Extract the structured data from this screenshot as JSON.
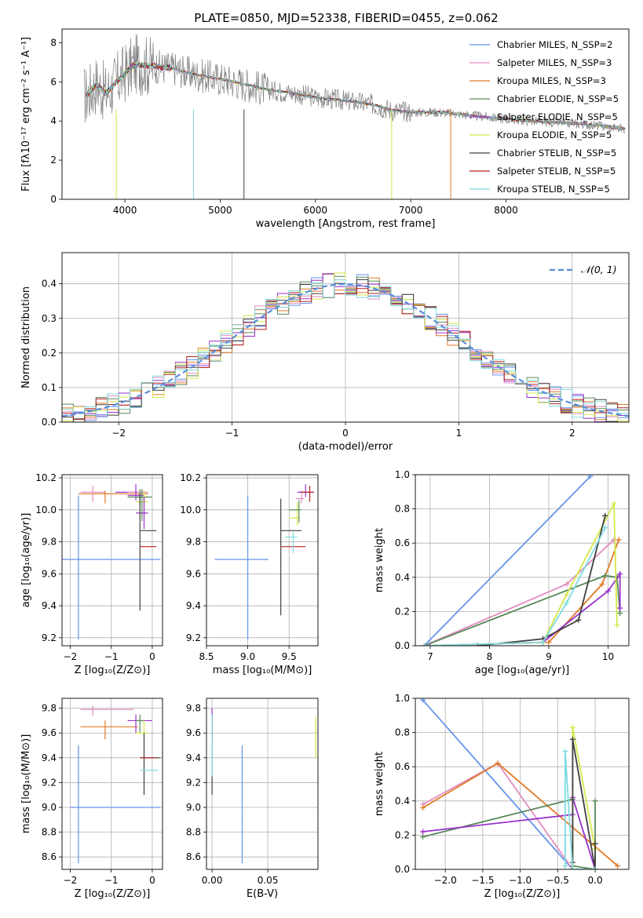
{
  "figure_title": "PLATE=0850, MJD=52338, FIBERID=0455, z=0.062",
  "chart_data": [
    {
      "id": "spectrum",
      "type": "line",
      "title": "PLATE=0850, MJD=52338, FIBERID=0455, z=0.062",
      "xlabel": "wavelength [Angstrom, rest frame]",
      "ylabel": "Flux [fλ10⁻¹⁷ erg cm⁻² s⁻¹ A⁻¹]",
      "xlim": [
        3340,
        9290
      ],
      "ylim": [
        0,
        8.7
      ],
      "xticks": [
        4000,
        5000,
        6000,
        7000,
        8000
      ],
      "yticks": [
        0,
        2,
        4,
        6,
        8
      ],
      "grid": false,
      "legend_position": "upper right",
      "observed_data_color": "#808080",
      "series": [
        {
          "name": "Chabrier MILES, N_SSP=2",
          "color": "#6495ed"
        },
        {
          "name": "Salpeter MILES, N_SSP=3",
          "color": "#e28ec0"
        },
        {
          "name": "Kroupa MILES, N_SSP=3",
          "color": "#e07a28"
        },
        {
          "name": "Chabrier ELODIE, N_SSP=5",
          "color": "#5a8a5a"
        },
        {
          "name": "Salpeter ELODIE, N_SSP=5",
          "color": "#9932cc"
        },
        {
          "name": "Kroupa ELODIE, N_SSP=5",
          "color": "#d4e84a"
        },
        {
          "name": "Chabrier STELIB, N_SSP=5",
          "color": "#404040"
        },
        {
          "name": "Salpeter STELIB, N_SSP=5",
          "color": "#b22222"
        },
        {
          "name": "Kroupa STELIB, N_SSP=5",
          "color": "#7fdbe0"
        }
      ],
      "continuum": {
        "x": [
          3600,
          3700,
          3800,
          3950,
          4100,
          4300,
          4500,
          4700,
          5000,
          5200,
          5500,
          5800,
          6000,
          6300,
          6600,
          6800,
          7000,
          7300,
          7600,
          8000,
          8400,
          8800,
          9250
        ],
        "y": [
          5.3,
          5.9,
          5.4,
          6.2,
          6.9,
          6.8,
          6.7,
          6.4,
          6.15,
          5.95,
          5.6,
          5.4,
          5.2,
          5.05,
          4.85,
          4.55,
          4.45,
          4.45,
          4.3,
          4.1,
          3.95,
          3.85,
          3.6
        ]
      }
    },
    {
      "id": "residuals",
      "type": "histogram",
      "xlabel": "(data-model)/error",
      "ylabel": "Normed distribution",
      "xlim": [
        -2.5,
        2.5
      ],
      "ylim": [
        0,
        0.49
      ],
      "xticks": [
        -2,
        -1,
        0,
        1,
        2
      ],
      "yticks": [
        0.0,
        0.1,
        0.2,
        0.3,
        0.4
      ],
      "grid": true,
      "legend_position": "upper right",
      "reference_curve": {
        "name": "𝒩(0, 1)",
        "color": "#5b8dd9",
        "style": "dashed",
        "mean": 0,
        "sigma": 1
      }
    },
    {
      "id": "age_vs_Z",
      "type": "errorbar",
      "xlabel": "Z [log₁₀(Z/Z⊙)]",
      "ylabel": "age  [log₁₀(age/yr)]",
      "xlim": [
        -2.2,
        0.25
      ],
      "ylim": [
        9.15,
        10.22
      ],
      "xticks": [
        -2,
        -1,
        0
      ],
      "yticks": [
        9.2,
        9.4,
        9.6,
        9.8,
        10.0,
        10.2
      ],
      "grid": true,
      "points": [
        {
          "x": -1.8,
          "y": 9.69,
          "xerr": [
            0.6,
            2.0
          ],
          "yerr": [
            0.5,
            0.4
          ],
          "color": "#6495ed"
        },
        {
          "x": -1.8,
          "y": 10.1,
          "xerr": [
            0.0,
            1.7
          ],
          "yerr": [
            0.0,
            0.0
          ],
          "color": "#e07a28"
        },
        {
          "x": -1.45,
          "y": 10.11,
          "xerr": [
            0.3,
            0.3
          ],
          "yerr": [
            0.06,
            0.04
          ],
          "color": "#e28ec0"
        },
        {
          "x": -1.15,
          "y": 10.1,
          "xerr": [
            0.2,
            0.2
          ],
          "yerr": [
            0.06,
            0.02
          ],
          "color": "#e07a28"
        },
        {
          "x": -0.7,
          "y": 10.11,
          "xerr": [
            0.2,
            0.5
          ],
          "yerr": [
            0.0,
            0.0
          ],
          "color": "#9932cc"
        },
        {
          "x": -0.6,
          "y": 10.11,
          "xerr": [
            0.0,
            0.5
          ],
          "yerr": [
            0.0,
            0.0
          ],
          "color": "#e28ec0"
        },
        {
          "x": -0.4,
          "y": 10.09,
          "xerr": [
            0.2,
            0.2
          ],
          "yerr": [
            0.03,
            0.07
          ],
          "color": "#9932cc"
        },
        {
          "x": -0.3,
          "y": 10.08,
          "xerr": [
            0.3,
            0.3
          ],
          "yerr": [
            0.05,
            0.05
          ],
          "color": "#5a8a5a"
        },
        {
          "x": -0.2,
          "y": 10.05,
          "xerr": [
            0.2,
            0.1
          ],
          "yerr": [
            0.03,
            0.07
          ],
          "color": "#d4e84a"
        },
        {
          "x": -0.25,
          "y": 9.98,
          "xerr": [
            0.1,
            0.1
          ],
          "yerr": [
            0.05,
            0.15
          ],
          "color": "#5a8a5a"
        },
        {
          "x": -0.2,
          "y": 9.98,
          "xerr": [
            0.2,
            0.1
          ],
          "yerr": [
            0.1,
            0.1
          ],
          "color": "#9932cc"
        },
        {
          "x": -0.3,
          "y": 9.87,
          "xerr": [
            0.0,
            0.4
          ],
          "yerr": [
            0.5,
            0.23
          ],
          "color": "#404040"
        },
        {
          "x": -0.3,
          "y": 9.77,
          "xerr": [
            0.0,
            0.4
          ],
          "yerr": [
            0.0,
            0.0
          ],
          "color": "#b22222"
        }
      ]
    },
    {
      "id": "age_vs_mass",
      "type": "errorbar",
      "xlabel": "mass [log₁₀(M/M⊙)]",
      "ylabel": "",
      "xlim": [
        8.5,
        9.85
      ],
      "ylim": [
        9.15,
        10.22
      ],
      "xticks": [
        8.5,
        9.0,
        9.5
      ],
      "yticks": [
        9.2,
        9.4,
        9.6,
        9.8,
        10.0,
        10.2
      ],
      "grid": true,
      "points": [
        {
          "x": 9.0,
          "y": 9.69,
          "xerr": [
            0.4,
            0.25
          ],
          "yerr": [
            0.5,
            0.4
          ],
          "color": "#6495ed"
        },
        {
          "x": 9.4,
          "y": 9.87,
          "xerr": [
            0.0,
            0.25
          ],
          "yerr": [
            0.53,
            0.2
          ],
          "color": "#404040"
        },
        {
          "x": 9.55,
          "y": 9.77,
          "xerr": [
            0.15,
            0.15
          ],
          "yerr": [
            0.0,
            0.0
          ],
          "color": "#b22222"
        },
        {
          "x": 9.55,
          "y": 9.83,
          "xerr": [
            0.1,
            0.05
          ],
          "yerr": [
            0.1,
            0.03
          ],
          "color": "#7fdbe0"
        },
        {
          "x": 9.6,
          "y": 9.95,
          "xerr": [
            0.1,
            0.03
          ],
          "yerr": [
            0.05,
            0.1
          ],
          "color": "#d4e84a"
        },
        {
          "x": 9.62,
          "y": 10.0,
          "xerr": [
            0.12,
            0.03
          ],
          "yerr": [
            0.08,
            0.06
          ],
          "color": "#5a8a5a"
        },
        {
          "x": 9.65,
          "y": 10.07,
          "xerr": [
            0.07,
            0.03
          ],
          "yerr": [
            0.03,
            0.05
          ],
          "color": "#e28ec0"
        },
        {
          "x": 9.7,
          "y": 10.11,
          "xerr": [
            0.1,
            0.1
          ],
          "yerr": [
            0.03,
            0.05
          ],
          "color": "#9932cc"
        },
        {
          "x": 9.75,
          "y": 10.11,
          "xerr": [
            0.1,
            0.05
          ],
          "yerr": [
            0.06,
            0.04
          ],
          "color": "#b22222"
        }
      ]
    },
    {
      "id": "weight_vs_age",
      "type": "line",
      "xlabel": "age  [log₁₀(age/yr)]",
      "ylabel": "mass weight",
      "xlim": [
        6.75,
        10.35
      ],
      "ylim": [
        0,
        1.0
      ],
      "xticks": [
        7,
        8,
        9,
        10
      ],
      "yticks": [
        0.0,
        0.2,
        0.4,
        0.6,
        0.8,
        1.0
      ],
      "grid": true,
      "series": [
        {
          "color": "#6495ed",
          "x": [
            6.9,
            9.7
          ],
          "y": [
            0.0,
            0.99
          ]
        },
        {
          "color": "#e28ec0",
          "x": [
            6.9,
            9.3,
            10.1,
            10.1
          ],
          "y": [
            0.0,
            0.36,
            0.62,
            0.62
          ]
        },
        {
          "color": "#e07a28",
          "x": [
            6.9,
            9.0,
            9.9,
            10.18
          ],
          "y": [
            0.0,
            0.02,
            0.36,
            0.62
          ]
        },
        {
          "color": "#5a8a5a",
          "x": [
            6.9,
            9.95,
            10.15,
            10.2
          ],
          "y": [
            0.0,
            0.41,
            0.4,
            0.19
          ]
        },
        {
          "color": "#9932cc",
          "x": [
            7.0,
            8.9,
            10.0,
            10.2,
            10.2
          ],
          "y": [
            0.0,
            0.02,
            0.32,
            0.42,
            0.22
          ]
        },
        {
          "color": "#d4e84a",
          "x": [
            6.9,
            8.9,
            9.3,
            10.1,
            10.15
          ],
          "y": [
            0.0,
            0.02,
            0.3,
            0.83,
            0.12
          ]
        },
        {
          "color": "#404040",
          "x": [
            7.8,
            8.9,
            9.5,
            9.95,
            9.95
          ],
          "y": [
            0.0,
            0.04,
            0.15,
            0.76,
            0.76
          ]
        },
        {
          "color": "#7fdbe0",
          "x": [
            6.9,
            8.9,
            9.3,
            9.95
          ],
          "y": [
            0.0,
            0.02,
            0.25,
            0.69
          ]
        }
      ]
    },
    {
      "id": "mass_vs_Z",
      "type": "errorbar",
      "xlabel": "Z [log₁₀(Z/Z⊙)]",
      "ylabel": "mass [log₁₀(M/M⊙)]",
      "xlim": [
        -2.2,
        0.25
      ],
      "ylim": [
        8.5,
        9.88
      ],
      "xticks": [
        -2,
        -1,
        0
      ],
      "yticks": [
        8.6,
        8.8,
        9.0,
        9.2,
        9.4,
        9.6,
        9.8
      ],
      "grid": true,
      "points": [
        {
          "x": -1.8,
          "y": 9.0,
          "xerr": [
            0.2,
            2.0
          ],
          "yerr": [
            0.45,
            0.5
          ],
          "color": "#6495ed"
        },
        {
          "x": -1.45,
          "y": 9.79,
          "xerr": [
            0.3,
            1.0
          ],
          "yerr": [
            0.05,
            0.03
          ],
          "color": "#e28ec0"
        },
        {
          "x": -1.15,
          "y": 9.65,
          "xerr": [
            0.6,
            0.8
          ],
          "yerr": [
            0.1,
            0.05
          ],
          "color": "#e07a28"
        },
        {
          "x": -0.4,
          "y": 9.7,
          "xerr": [
            0.2,
            0.4
          ],
          "yerr": [
            0.1,
            0.05
          ],
          "color": "#9932cc"
        },
        {
          "x": -0.3,
          "y": 9.7,
          "xerr": [
            0.1,
            0.1
          ],
          "yerr": [
            0.1,
            0.05
          ],
          "color": "#5a8a5a"
        },
        {
          "x": -0.2,
          "y": 9.6,
          "xerr": [
            0.2,
            0.1
          ],
          "yerr": [
            0.05,
            0.1
          ],
          "color": "#d4e84a"
        },
        {
          "x": -0.2,
          "y": 9.4,
          "xerr": [
            0.1,
            0.4
          ],
          "yerr": [
            0.3,
            0.2
          ],
          "color": "#404040"
        },
        {
          "x": -0.3,
          "y": 9.4,
          "xerr": [
            0.0,
            0.4
          ],
          "yerr": [
            0.0,
            0.0
          ],
          "color": "#b22222"
        },
        {
          "x": -0.25,
          "y": 9.3,
          "xerr": [
            0.05,
            0.4
          ],
          "yerr": [
            0.0,
            0.0
          ],
          "color": "#7fdbe0"
        }
      ]
    },
    {
      "id": "mass_vs_ebv",
      "type": "errorbar",
      "xlabel": "E(B-V)",
      "ylabel": "",
      "xlim": [
        -0.005,
        0.095
      ],
      "ylim": [
        8.5,
        9.88
      ],
      "xticks": [
        0.0,
        0.05
      ],
      "yticks": [
        8.6,
        8.8,
        9.0,
        9.2,
        9.4,
        9.6,
        9.8
      ],
      "grid": true,
      "points": [
        {
          "x": 0.027,
          "y": 9.0,
          "xerr": [
            0,
            0
          ],
          "yerr": [
            0.45,
            0.5
          ],
          "color": "#6495ed"
        },
        {
          "x": 0.0,
          "y": 9.4,
          "xerr": [
            0,
            0
          ],
          "yerr": [
            0.3,
            0.2
          ],
          "color": "#404040"
        },
        {
          "x": 0.0,
          "y": 9.65,
          "xerr": [
            0,
            0
          ],
          "yerr": [
            0.1,
            0.1
          ],
          "color": "#b22222"
        },
        {
          "x": 0.0,
          "y": 9.7,
          "xerr": [
            0,
            0
          ],
          "yerr": [
            0.1,
            0.1
          ],
          "color": "#9932cc"
        },
        {
          "x": 0.0,
          "y": 9.55,
          "xerr": [
            0,
            0
          ],
          "yerr": [
            0.3,
            0.2
          ],
          "color": "#7fdbe0"
        },
        {
          "x": 0.093,
          "y": 9.55,
          "xerr": [
            0,
            0
          ],
          "yerr": [
            0.15,
            0.18
          ],
          "color": "#d4e84a"
        }
      ]
    },
    {
      "id": "weight_vs_Z",
      "type": "line",
      "xlabel": "Z [log₁₀(Z/Z⊙)]",
      "ylabel": "mass weight",
      "xlim": [
        -2.4,
        0.45
      ],
      "ylim": [
        0,
        1.0
      ],
      "xticks": [
        -2.0,
        -1.5,
        -1.0,
        -0.5,
        0.0
      ],
      "yticks": [
        0.0,
        0.2,
        0.4,
        0.6,
        0.8,
        1.0
      ],
      "grid": true,
      "series": [
        {
          "color": "#6495ed",
          "x": [
            -2.3,
            -0.3,
            0.0
          ],
          "y": [
            0.99,
            0.0,
            0.0
          ]
        },
        {
          "color": "#e28ec0",
          "x": [
            -2.3,
            -1.3,
            -0.3
          ],
          "y": [
            0.38,
            0.62,
            0.0
          ]
        },
        {
          "color": "#e07a28",
          "x": [
            -2.3,
            -1.3,
            0.3
          ],
          "y": [
            0.36,
            0.62,
            0.02
          ]
        },
        {
          "color": "#5a8a5a",
          "x": [
            -2.3,
            -0.3,
            -0.3,
            0.0,
            0.0
          ],
          "y": [
            0.19,
            0.41,
            0.02,
            0.0,
            0.4
          ]
        },
        {
          "color": "#9932cc",
          "x": [
            -2.3,
            -0.3,
            -0.3,
            0.0
          ],
          "y": [
            0.22,
            0.32,
            0.42,
            0.0
          ]
        },
        {
          "color": "#d4e84a",
          "x": [
            -0.3,
            -0.3,
            0.0,
            0.0
          ],
          "y": [
            0.0,
            0.83,
            0.12,
            0.0
          ]
        },
        {
          "color": "#404040",
          "x": [
            -0.3,
            -0.3,
            0.0,
            0.0
          ],
          "y": [
            0.04,
            0.76,
            0.0,
            0.15
          ]
        },
        {
          "color": "#7fdbe0",
          "x": [
            -0.4,
            -0.4,
            -0.3,
            0.0
          ],
          "y": [
            0.02,
            0.69,
            0.0,
            0.0
          ]
        }
      ]
    }
  ]
}
